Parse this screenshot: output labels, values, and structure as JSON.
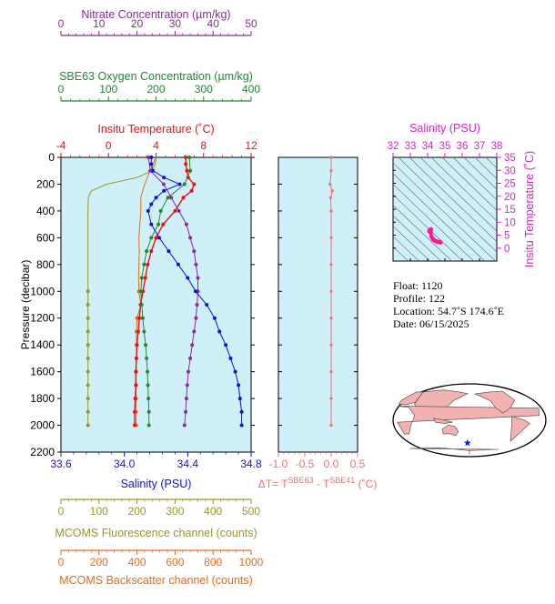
{
  "colors": {
    "nitrate": "#8b2a9a",
    "oxygen": "#1e8b2e",
    "temperature": "#ee1111",
    "salinity": "#1111dd",
    "fluorescence": "#999922",
    "backscatter": "#e86a1a",
    "delta_t": "#f07070",
    "ts_axis": "#dd22cc",
    "plot_bg": "#cff0f8",
    "land": "#f2b2b2"
  },
  "chart_data": [
    {
      "type": "line",
      "panel": "profiles",
      "ylabel": "Pressure (decibar)",
      "y_ticks": [
        0,
        200,
        400,
        600,
        800,
        1000,
        1200,
        1400,
        1600,
        1800,
        2000,
        2200
      ],
      "ylim": [
        2200,
        0
      ],
      "grid": false,
      "axes": [
        {
          "key": "nitrate",
          "label": "Nitrate Concentration (µm/kg)",
          "ticks": [
            0,
            10,
            20,
            30,
            40,
            50
          ],
          "lim": [
            0,
            50
          ],
          "position": "top"
        },
        {
          "key": "oxygen",
          "label": "SBE63 Oxygen Concentration (µm/kg)",
          "ticks": [
            0,
            100,
            200,
            300,
            400
          ],
          "lim": [
            0,
            400
          ],
          "position": "top"
        },
        {
          "key": "temperature",
          "label": "Insitu Temperature (˚C)",
          "ticks": [
            -4,
            0,
            4,
            8,
            12
          ],
          "lim": [
            -4,
            12
          ],
          "position": "top"
        },
        {
          "key": "salinity",
          "label": "Salinity (PSU)",
          "ticks": [
            33.6,
            34.0,
            34.4,
            34.8
          ],
          "lim": [
            33.6,
            34.8
          ],
          "position": "bottom"
        },
        {
          "key": "fluorescence",
          "label": "MCOMS Fluorescence channel (counts)",
          "ticks": [
            0,
            100,
            200,
            300,
            400,
            500
          ],
          "lim": [
            0,
            500
          ],
          "position": "bottom"
        },
        {
          "key": "backscatter",
          "label": "MCOMS Backscatter channel (counts)",
          "ticks": [
            0,
            200,
            400,
            600,
            800,
            1000
          ],
          "lim": [
            0,
            1000
          ],
          "position": "bottom"
        }
      ],
      "series": [
        {
          "key": "fluorescence",
          "pressure": [
            0,
            50,
            100,
            150,
            200,
            250,
            300,
            400,
            600,
            800,
            1000,
            1100,
            1200,
            1300,
            1400,
            1500,
            1600,
            1700,
            1800,
            1900,
            2000
          ],
          "values": [
            250,
            248,
            240,
            200,
            120,
            80,
            72,
            71,
            71,
            71,
            71,
            71,
            71,
            71,
            71,
            71,
            71,
            71,
            71,
            71,
            71
          ]
        },
        {
          "key": "backscatter",
          "pressure": [
            0,
            100,
            200,
            300,
            400,
            500,
            600,
            700,
            800,
            900,
            1000,
            1100,
            1200,
            1300,
            1400,
            1500,
            1600,
            1700,
            1800,
            1900,
            2000
          ],
          "values": [
            500,
            470,
            440,
            420,
            420,
            415,
            410,
            412,
            410,
            408,
            410,
            420,
            400,
            397,
            397,
            397,
            395,
            395,
            395,
            395,
            395
          ]
        },
        {
          "key": "temperature",
          "pressure": [
            0,
            50,
            100,
            150,
            200,
            250,
            300,
            400,
            500,
            600,
            700,
            800,
            900,
            1000,
            1100,
            1200,
            1300,
            1400,
            1500,
            1600,
            1700,
            1800,
            1900,
            2000
          ],
          "values": [
            6.5,
            6.5,
            6.6,
            6.7,
            7.2,
            7.0,
            6.3,
            5.6,
            4.6,
            4.0,
            3.6,
            3.3,
            3.1,
            2.9,
            2.7,
            2.6,
            2.5,
            2.4,
            2.35,
            2.3,
            2.3,
            2.25,
            2.2,
            2.2
          ]
        },
        {
          "key": "oxygen",
          "pressure": [
            0,
            100,
            200,
            300,
            400,
            500,
            600,
            700,
            800,
            900,
            1000,
            1100,
            1200,
            1300,
            1400,
            1500,
            1600,
            1700,
            1800,
            1900,
            2000
          ],
          "values": [
            270,
            272,
            260,
            225,
            210,
            205,
            190,
            180,
            175,
            170,
            168,
            170,
            172,
            175,
            178,
            180,
            182,
            183,
            184,
            185,
            185
          ]
        },
        {
          "key": "nitrate",
          "pressure": [
            0,
            100,
            200,
            300,
            400,
            500,
            600,
            700,
            800,
            900,
            1000,
            1100,
            1200,
            1300,
            1400,
            1500,
            1600,
            1700,
            1800,
            1900,
            2000
          ],
          "values": [
            23,
            23.5,
            27,
            29,
            31,
            33,
            34,
            35,
            35.5,
            36,
            36,
            35.8,
            35.5,
            35,
            34.5,
            34,
            33.5,
            33.2,
            33,
            32.8,
            32.5
          ]
        },
        {
          "key": "salinity",
          "pressure": [
            0,
            50,
            100,
            150,
            200,
            250,
            300,
            350,
            400,
            500,
            600,
            700,
            800,
            900,
            1000,
            1100,
            1200,
            1300,
            1400,
            1500,
            1600,
            1700,
            1800,
            1900,
            2000
          ],
          "values": [
            34.17,
            34.17,
            34.18,
            34.25,
            34.35,
            34.25,
            34.2,
            34.17,
            34.15,
            34.17,
            34.22,
            34.28,
            34.34,
            34.4,
            34.45,
            34.52,
            34.57,
            34.6,
            34.64,
            34.67,
            34.7,
            34.72,
            34.73,
            34.74,
            34.74
          ]
        }
      ]
    },
    {
      "type": "line",
      "panel": "delta_t",
      "xlabel_parts": [
        "ΔT= T",
        "SBE63",
        " - T",
        "SBE41",
        " (˚C)"
      ],
      "x_ticks": [
        -1.0,
        -0.5,
        0.0,
        0.5
      ],
      "x_tick_labels": [
        "-1.0",
        "-0.5",
        "0.0",
        "0.5"
      ],
      "xlim": [
        -1.0,
        0.5
      ],
      "ylim": [
        2200,
        0
      ],
      "pressure": [
        0,
        100,
        200,
        250,
        300,
        400,
        600,
        800,
        1000,
        1200,
        1400,
        1600,
        1800,
        2000
      ],
      "values": [
        0.0,
        0.0,
        -0.02,
        0.02,
        -0.01,
        0.0,
        0.0,
        0.0,
        0.0,
        0.0,
        0.0,
        0.0,
        0.0,
        0.0
      ]
    },
    {
      "type": "scatter",
      "panel": "ts_diagram",
      "title": "Salinity (PSU)",
      "x_ticks": [
        32,
        33,
        34,
        35,
        36,
        37,
        38
      ],
      "xlim": [
        32,
        38
      ],
      "ylabel": "Insitu Temperature (˚C)",
      "y_ticks": [
        0,
        5,
        10,
        15,
        20,
        25,
        30,
        35
      ],
      "ylim": [
        -5,
        35
      ],
      "points": [
        [
          34.1,
          6.5
        ],
        [
          34.15,
          7.0
        ],
        [
          34.2,
          7.2
        ],
        [
          34.18,
          6.0
        ],
        [
          34.22,
          4.5
        ],
        [
          34.3,
          3.5
        ],
        [
          34.38,
          3.0
        ],
        [
          34.5,
          2.6
        ],
        [
          34.6,
          2.4
        ],
        [
          34.7,
          2.3
        ],
        [
          34.74,
          2.2
        ]
      ]
    }
  ],
  "float_info": {
    "float": "Float:  1120",
    "profile": "Profile:  122",
    "location": "Location:  54.7˚S  174.6˚E",
    "date": "Date:  06/15/2025"
  },
  "map": {
    "lat": -54.7,
    "lon": 174.6
  }
}
